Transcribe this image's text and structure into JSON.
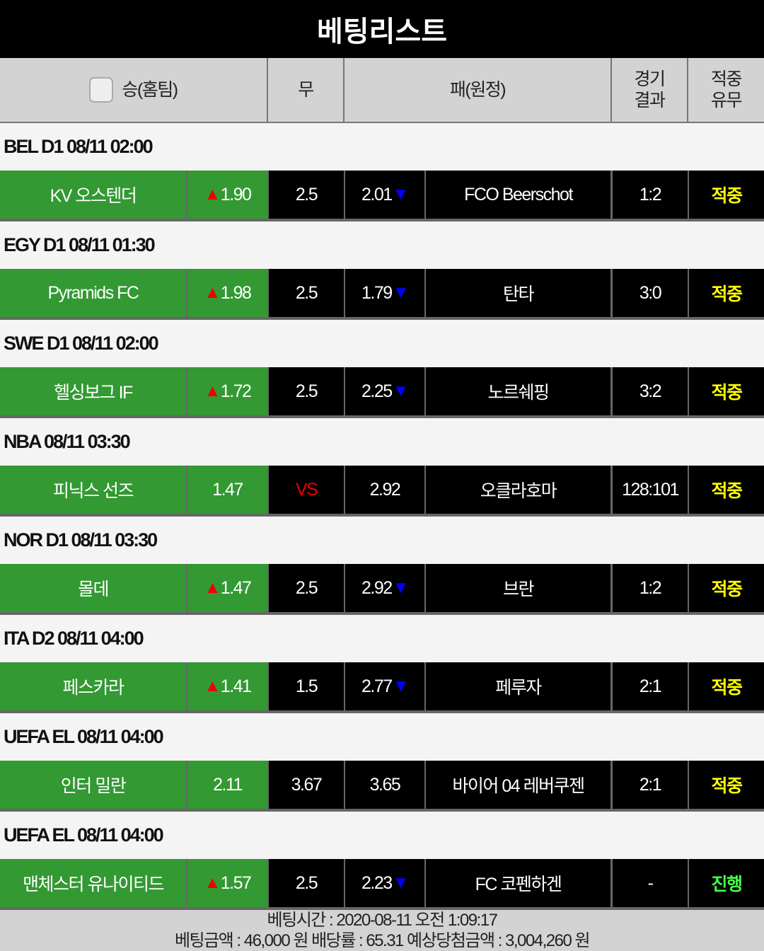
{
  "title": "베팅리스트",
  "columns": {
    "home": "승(홈팀)",
    "draw": "무",
    "away": "패(원정)",
    "result": "경기\n결과",
    "hit": "적중\n유무"
  },
  "colors": {
    "green": "#339933",
    "up": "#ee0000",
    "down": "#0000ff",
    "hit": "#ffff00",
    "progress": "#44ff44"
  },
  "games": [
    {
      "league": "BEL D1 08/11 02:00",
      "home": "KV 오스텐더",
      "home_odds": "1.90",
      "home_arrow": "up",
      "draw": "2.5",
      "away_odds": "2.01",
      "away_arrow": "down",
      "away": "FCO Beerschot",
      "result": "1:2",
      "status": "적중"
    },
    {
      "league": "EGY D1 08/11 01:30",
      "home": "Pyramids FC",
      "home_odds": "1.98",
      "home_arrow": "up",
      "draw": "2.5",
      "away_odds": "1.79",
      "away_arrow": "down",
      "away": "탄타",
      "result": "3:0",
      "status": "적중"
    },
    {
      "league": "SWE D1 08/11 02:00",
      "home": "헬싱보그 IF",
      "home_odds": "1.72",
      "home_arrow": "up",
      "draw": "2.5",
      "away_odds": "2.25",
      "away_arrow": "down",
      "away": "노르쉐핑",
      "result": "3:2",
      "status": "적중"
    },
    {
      "league": "NBA 08/11 03:30",
      "home": "피닉스 선즈",
      "home_odds": "1.47",
      "home_arrow": "",
      "draw": "VS",
      "away_odds": "2.92",
      "away_arrow": "",
      "away": "오클라호마",
      "result": "128:101",
      "status": "적중"
    },
    {
      "league": "NOR D1 08/11 03:30",
      "home": "몰데",
      "home_odds": "1.47",
      "home_arrow": "up",
      "draw": "2.5",
      "away_odds": "2.92",
      "away_arrow": "down",
      "away": "브란",
      "result": "1:2",
      "status": "적중"
    },
    {
      "league": "ITA D2 08/11 04:00",
      "home": "페스카라",
      "home_odds": "1.41",
      "home_arrow": "up",
      "draw": "1.5",
      "away_odds": "2.77",
      "away_arrow": "down",
      "away": "페루자",
      "result": "2:1",
      "status": "적중"
    },
    {
      "league": "UEFA EL 08/11 04:00",
      "home": "인터 밀란",
      "home_odds": "2.11",
      "home_arrow": "",
      "draw": "3.67",
      "away_odds": "3.65",
      "away_arrow": "",
      "away": "바이어 04 레버쿠젠",
      "result": "2:1",
      "status": "적중"
    },
    {
      "league": "UEFA EL 08/11 04:00",
      "home": "맨체스터 유나이티드",
      "home_odds": "1.57",
      "home_arrow": "up",
      "draw": "2.5",
      "away_odds": "2.23",
      "away_arrow": "down",
      "away": "FC 코펜하겐",
      "result": "-",
      "status": "진행"
    }
  ],
  "footer": {
    "bet_time": "베팅시간 : 2020-08-11 오전 1:09:17",
    "summary": "베팅금액 : 46,000 원 배당률 : 65.31 예상당첨금액 : 3,004,260 원"
  }
}
